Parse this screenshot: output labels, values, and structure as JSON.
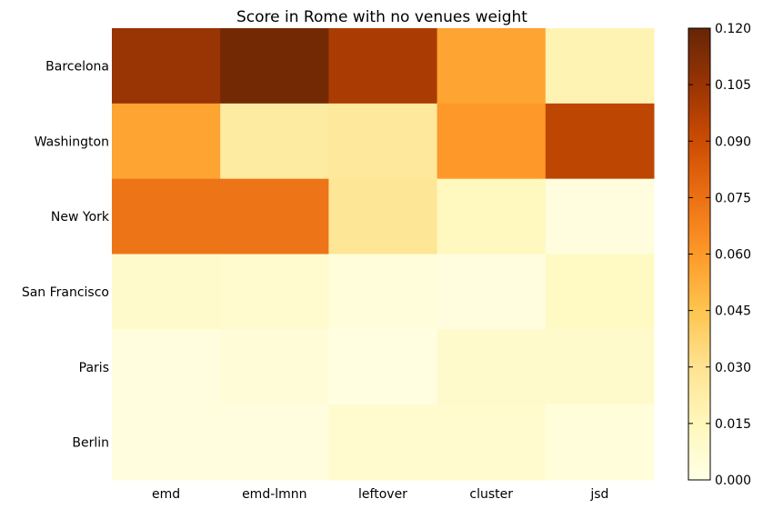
{
  "chart_data": {
    "type": "heatmap",
    "title": "Score in Rome with no venues weight",
    "columns": [
      "emd",
      "emd-lmnn",
      "leftover",
      "cluster",
      "jsd"
    ],
    "rows": [
      "Barcelona",
      "Washington",
      "New York",
      "San Francisco",
      "Paris",
      "Berlin"
    ],
    "values": [
      [
        0.105,
        0.116,
        0.1,
        0.056,
        0.018
      ],
      [
        0.056,
        0.024,
        0.026,
        0.06,
        0.094
      ],
      [
        0.073,
        0.073,
        0.028,
        0.014,
        0.003
      ],
      [
        0.009,
        0.008,
        0.004,
        0.003,
        0.012
      ],
      [
        0.003,
        0.005,
        0.002,
        0.009,
        0.009
      ],
      [
        0.003,
        0.003,
        0.008,
        0.008,
        0.004
      ]
    ],
    "colorbar": {
      "min": 0.0,
      "max": 0.12,
      "ticks": [
        "0.000",
        "0.015",
        "0.030",
        "0.045",
        "0.060",
        "0.075",
        "0.090",
        "0.105",
        "0.120"
      ],
      "colormap": "YlOrBr",
      "stops": [
        "#ffffe5",
        "#fff7bc",
        "#fee391",
        "#fec44f",
        "#fe9929",
        "#ec7014",
        "#cc4c02",
        "#993404",
        "#662506"
      ]
    }
  }
}
